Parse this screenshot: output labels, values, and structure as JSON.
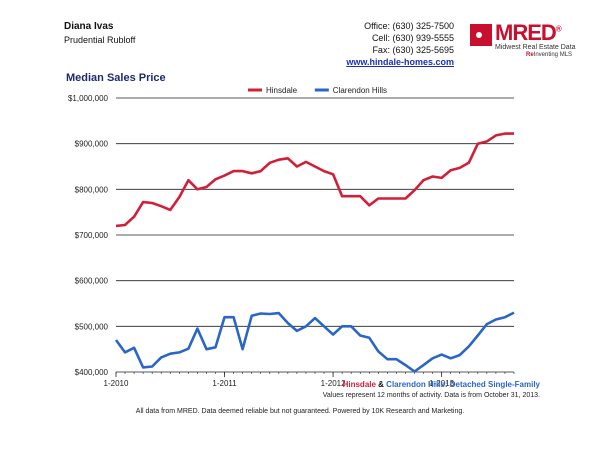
{
  "header": {
    "agent_name": "Diana Ivas",
    "agent_company": "Prudential Rubloff",
    "office": "Office: (630) 325-7500",
    "cell": "Cell: (630) 939-5555",
    "fax": "Fax: (630) 325-5695",
    "website": "www.hindale-homes.com"
  },
  "logo": {
    "word": "MRED",
    "registered": "®",
    "line1": "Midwest Real Estate Data",
    "line2_red": "Re",
    "line2_rest": "Inventing MLS"
  },
  "colors": {
    "hinsdale": "#d11f3a",
    "clarendon": "#2a66c8"
  },
  "chart_data": {
    "type": "line",
    "title": "Median Sales Price",
    "x_ticks": [
      "1-2010",
      "1-2011",
      "1-2012",
      "1-2013"
    ],
    "x_tick_index": [
      0,
      12,
      24,
      36
    ],
    "y_ticks": [
      "$400,000",
      "$500,000",
      "$600,000",
      "$700,000",
      "$800,000",
      "$900,000",
      "$1,000,000"
    ],
    "ylim": [
      400000,
      1000000
    ],
    "grid": true,
    "legend_position": "top",
    "series": [
      {
        "name": "Hinsdale",
        "values": [
          720000,
          722000,
          740000,
          772000,
          770000,
          763000,
          755000,
          783000,
          820000,
          800000,
          805000,
          822000,
          830000,
          840000,
          840000,
          835000,
          840000,
          858000,
          865000,
          868000,
          850000,
          860000,
          850000,
          840000,
          833000,
          785000,
          785000,
          785000,
          765000,
          780000,
          780000,
          780000,
          780000,
          798000,
          820000,
          828000,
          825000,
          842000,
          847000,
          858000,
          900000,
          905000,
          918000,
          922000,
          922000
        ]
      },
      {
        "name": "Clarendon Hills",
        "values": [
          470000,
          443000,
          453000,
          410000,
          412000,
          432000,
          440000,
          443000,
          451000,
          495000,
          450000,
          454000,
          520000,
          520000,
          450000,
          523000,
          528000,
          527000,
          529000,
          507000,
          490000,
          500000,
          518000,
          500000,
          482000,
          500000,
          500000,
          480000,
          475000,
          445000,
          428000,
          428000,
          415000,
          401000,
          415000,
          430000,
          438000,
          430000,
          437000,
          456000,
          480000,
          505000,
          515000,
          520000,
          530000
        ]
      }
    ]
  },
  "footer": {
    "subtitle_part1": "Hinsdale",
    "subtitle_part2": " & ",
    "subtitle_part3": "Clarendon Hills",
    "subtitle_part4": ": Detached Single-Family",
    "values_note": "Values represent 12 months of activity. Data is from October 31, 2013.",
    "disclaimer": "All data from MRED. Data deemed reliable but not guaranteed. Powered by 10K Research and Marketing."
  }
}
